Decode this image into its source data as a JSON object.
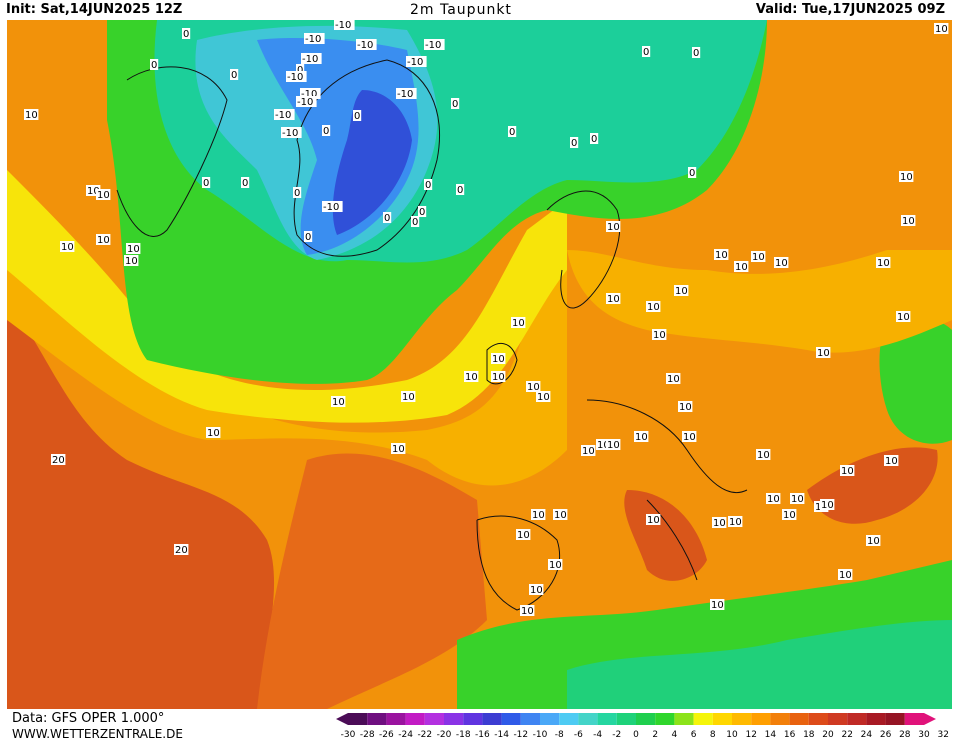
{
  "header": {
    "init": "Init: Sat,14JUN2025 12Z",
    "title": "2m Taupunkt",
    "valid": "Valid: Tue,17JUN2025 09Z"
  },
  "footer": {
    "data_source": "Data: GFS OPER 1.000°",
    "site": "WWW.WETTERZENTRALE.DE"
  },
  "legend": {
    "colors": [
      "#4b0c57",
      "#6f0f80",
      "#9a139f",
      "#c21bc4",
      "#b330e0",
      "#8a33e6",
      "#6034e0",
      "#3c3cd2",
      "#2f5ae8",
      "#3f84f2",
      "#4aa8f7",
      "#4ecbf3",
      "#44d4c8",
      "#25d6a0",
      "#1ed27a",
      "#1fcf4e",
      "#2fd62c",
      "#8ce31a",
      "#f5f50a",
      "#ffd700",
      "#ffba00",
      "#ff9f00",
      "#f27f0a",
      "#e8620f",
      "#dd4b1a",
      "#cf3a22",
      "#c02a26",
      "#a81a24",
      "#951424",
      "#e0127a"
    ],
    "ticks": [
      "-30",
      "-28",
      "-26",
      "-24",
      "-22",
      "-20",
      "-18",
      "-16",
      "-14",
      "-12",
      "-10",
      "-8",
      "-6",
      "-4",
      "-2",
      "0",
      "2",
      "4",
      "6",
      "8",
      "10",
      "12",
      "14",
      "16",
      "18",
      "20",
      "22",
      "24",
      "26",
      "28",
      "30",
      "32"
    ]
  },
  "map": {
    "colors": {
      "ocean_warm": "#e66a18",
      "hot": "#d9561a",
      "orange": "#f2920a",
      "amber": "#f7b000",
      "yellow": "#f7e40a",
      "green": "#38d22a",
      "lightgreen": "#20d07a",
      "teal": "#1ccf9a",
      "cyan": "#40c6d6",
      "blue": "#3a8ef0",
      "deepblue": "#3050d8"
    },
    "contour_labels": [
      "10",
      "10",
      "10",
      "10",
      "10",
      "10",
      "10",
      "10",
      "10",
      "10",
      "10",
      "10",
      "10",
      "10",
      "10",
      "10",
      "10",
      "10",
      "10",
      "10",
      "10",
      "10",
      "10",
      "10",
      "10",
      "10",
      "10",
      "10",
      "10",
      "10",
      "10",
      "10",
      "10",
      "10",
      "10",
      "10",
      "10",
      "10",
      "10",
      "10",
      "10",
      "10",
      "10",
      "10",
      "10",
      "10",
      "10",
      "10",
      "10",
      "10",
      "10",
      "10",
      "10",
      "10",
      "10",
      "10",
      "10",
      "10",
      "10",
      "20",
      "20",
      "0",
      "0",
      "0",
      "0",
      "0",
      "0",
      "0",
      "0",
      "0",
      "0",
      "0",
      "0",
      "0",
      "0",
      "0",
      "0",
      "0",
      "0",
      "0",
      "0",
      "0",
      "0",
      "-10",
      "-10",
      "-10",
      "-10",
      "-10",
      "-10",
      "-10",
      "-10",
      "-10",
      "-10",
      "-10",
      "-10",
      "-10",
      "-10"
    ]
  }
}
